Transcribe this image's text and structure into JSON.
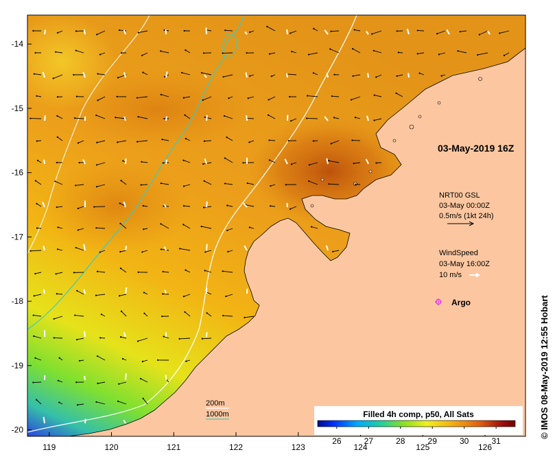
{
  "map": {
    "x_ticks": [
      "119",
      "120",
      "121",
      "122",
      "123",
      "124",
      "125",
      "126"
    ],
    "y_ticks": [
      "-14",
      "-15",
      "-16",
      "-17",
      "-18",
      "-19",
      "-20"
    ],
    "lon_range": [
      118.65,
      126.65
    ],
    "lat_range": [
      -20.1,
      -13.55
    ]
  },
  "date_label": "03-May-2019 16Z",
  "current_legend": {
    "title": "NRT00 GSL",
    "time": "03-May 00:00Z",
    "scale": "0.5m/s (1kt 24h)"
  },
  "wind_legend": {
    "title": "WindSpeed",
    "time": "03-May 16:00Z",
    "scale": "10 m/s"
  },
  "argo_label": "Argo",
  "contour_legend": {
    "c200": "200m",
    "c1000": "1000m"
  },
  "colorbar": {
    "title": "Filled 4h comp, p50, All Sats",
    "ticks": [
      "26",
      "27",
      "28",
      "29",
      "30",
      "31"
    ],
    "range": [
      25.4,
      31.6
    ]
  },
  "credit": "© IMOS 08-May-2019 12:55 Hobart",
  "colors": {
    "land": "#fcc7a0",
    "contour_200": "#ffffff",
    "contour_1000": "#3ec9c0",
    "argo": "#e040e0"
  }
}
